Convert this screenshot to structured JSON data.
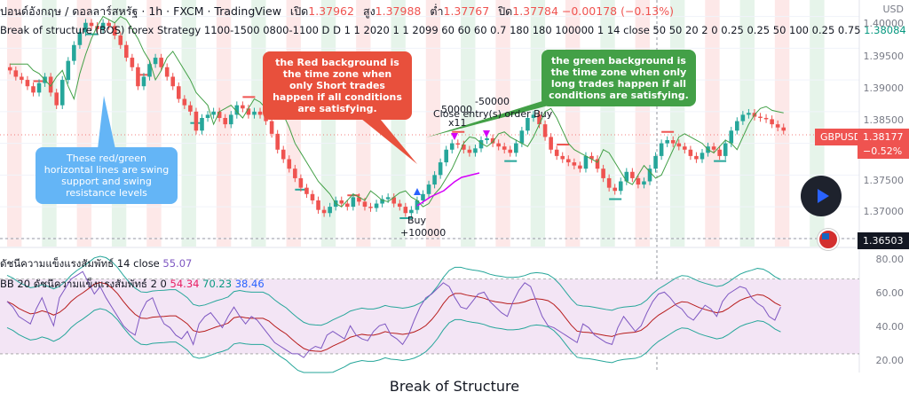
{
  "header": {
    "symbol": "ปอนด์อังกฤษ / ดอลลาร์สหรัฐ · 1h · FXCM · TradingView",
    "open_label": "เปิด",
    "open": "1.37962",
    "high_label": "สูง",
    "high": "1.37988",
    "low_label": "ต่ำ",
    "low": "1.37767",
    "close_label": "ปิด",
    "close": "1.37784",
    "change": "−0.00178 (−0.13%)"
  },
  "strategy": {
    "name": "Break of structure (BOS) forex Strategy 1100-1500 0800-1100 D D 1 1 2020 1 1 2099 60 60 60 0.7 180 180 100000 1 14 close 50 50 20 2 0 0.25 0.25 50 100 0.25 0.75",
    "value": "1.38084"
  },
  "price_axis": {
    "currency": "USD",
    "ticks": [
      "1.40000",
      "1.39500",
      "1.39000",
      "1.38500",
      "1.38000",
      "1.37500",
      "1.37000",
      "1.36500"
    ]
  },
  "badges": {
    "symbol": "GBPUSD",
    "last_price": "1.38177",
    "last_pct": "−0.52%",
    "crosshair_price": "1.36503"
  },
  "callouts": {
    "red": "the Red background is the time zone when only Short trades happen if all conditions are satisfying.",
    "green": "the green background is the time zone when only long trades happen if all conditions are satisfying.",
    "blue": "These red/green horizontal lines are swing support and swing resistance levels"
  },
  "signals": {
    "buy_label": "Buy",
    "buy_qty": "+100000",
    "close_qty1": "50000",
    "close_qty2": "-50000",
    "close_label": "Close entry(s) order Buy",
    "close_mult": "x11"
  },
  "indicator1": {
    "name": "ดัชนีความแข็งแรงสัมพัทธ์ 14 close",
    "value": "55.07"
  },
  "indicator2": {
    "name": "BB 20 ดัชนีความแข็งแรงสัมพัทธ์ 2 0",
    "v1": "54.34",
    "v2": "70.23",
    "v3": "38.46"
  },
  "rsi_axis": {
    "ticks": [
      "80.00",
      "60.00",
      "40.00",
      "20.00"
    ]
  },
  "caption": "Break of Structure",
  "colors": {
    "up": "#26a69a",
    "down": "#ef5350",
    "short_zone": "#fde8e8",
    "long_zone": "#e6f4ea",
    "rsi": "#7e57c2",
    "bb": "#26a69a"
  },
  "chart_data": [
    {
      "type": "candlestick",
      "title": "Break of structure (BOS) forex Strategy",
      "ylabel": "USD",
      "ylim": [
        1.364,
        1.4005
      ],
      "close_series": [
        1.3915,
        1.3905,
        1.39,
        1.389,
        1.388,
        1.3895,
        1.3905,
        1.388,
        1.386,
        1.39,
        1.393,
        1.3955,
        1.3975,
        1.399,
        1.3985,
        1.398,
        1.399,
        1.3985,
        1.397,
        1.3955,
        1.3935,
        1.392,
        1.389,
        1.3905,
        1.3925,
        1.3935,
        1.392,
        1.3905,
        1.389,
        1.387,
        1.386,
        1.385,
        1.382,
        1.384,
        1.3845,
        1.385,
        1.384,
        1.383,
        1.3845,
        1.386,
        1.3855,
        1.3845,
        1.385,
        1.3845,
        1.3835,
        1.3815,
        1.379,
        1.3775,
        1.376,
        1.3745,
        1.373,
        1.372,
        1.371,
        1.3695,
        1.369,
        1.37,
        1.371,
        1.3705,
        1.37,
        1.3715,
        1.3708,
        1.37,
        1.3698,
        1.3705,
        1.3712,
        1.3715,
        1.3705,
        1.37,
        1.369,
        1.3695,
        1.371,
        1.372,
        1.3735,
        1.375,
        1.377,
        1.379,
        1.38,
        1.3798,
        1.379,
        1.3785,
        1.3792,
        1.3805,
        1.3808,
        1.38,
        1.3795,
        1.379,
        1.3785,
        1.38,
        1.382,
        1.384,
        1.3845,
        1.383,
        1.381,
        1.379,
        1.378,
        1.3775,
        1.377,
        1.3765,
        1.376,
        1.378,
        1.3775,
        1.376,
        1.3745,
        1.373,
        1.3725,
        1.374,
        1.3755,
        1.3745,
        1.3735,
        1.374,
        1.376,
        1.378,
        1.38,
        1.3805,
        1.38,
        1.3795,
        1.379,
        1.378,
        1.3775,
        1.3785,
        1.3795,
        1.379,
        1.378,
        1.38,
        1.382,
        1.3835,
        1.3845,
        1.3848,
        1.3842,
        1.384,
        1.3838,
        1.383,
        1.3825,
        1.382
      ],
      "rsi": [
        58,
        55,
        50,
        48,
        46,
        54,
        60,
        52,
        45,
        60,
        65,
        70,
        72,
        74,
        68,
        62,
        66,
        60,
        55,
        50,
        45,
        42,
        40,
        52,
        58,
        60,
        52,
        46,
        44,
        40,
        38,
        42,
        35,
        46,
        50,
        52,
        48,
        44,
        50,
        55,
        50,
        46,
        50,
        48,
        44,
        40,
        36,
        34,
        32,
        30,
        30,
        28,
        32,
        34,
        33,
        40,
        42,
        40,
        38,
        45,
        40,
        38,
        37,
        42,
        45,
        46,
        40,
        38,
        35,
        40,
        48,
        55,
        60,
        62,
        65,
        68,
        66,
        60,
        55,
        54,
        58,
        62,
        63,
        58,
        55,
        52,
        50,
        58,
        64,
        68,
        66,
        58,
        50,
        45,
        44,
        42,
        40,
        38,
        36,
        46,
        44,
        40,
        38,
        36,
        35,
        44,
        50,
        46,
        42,
        45,
        52,
        58,
        62,
        63,
        60,
        56,
        54,
        50,
        48,
        52,
        56,
        54,
        50,
        58,
        62,
        64,
        66,
        65,
        60,
        57,
        55,
        50,
        48,
        55
      ],
      "rsi_ylim": [
        20,
        85
      ],
      "bb_upper": 70.23,
      "bb_basis": 54.34,
      "bb_lower": 38.46,
      "bands": [
        70,
        30
      ]
    }
  ]
}
